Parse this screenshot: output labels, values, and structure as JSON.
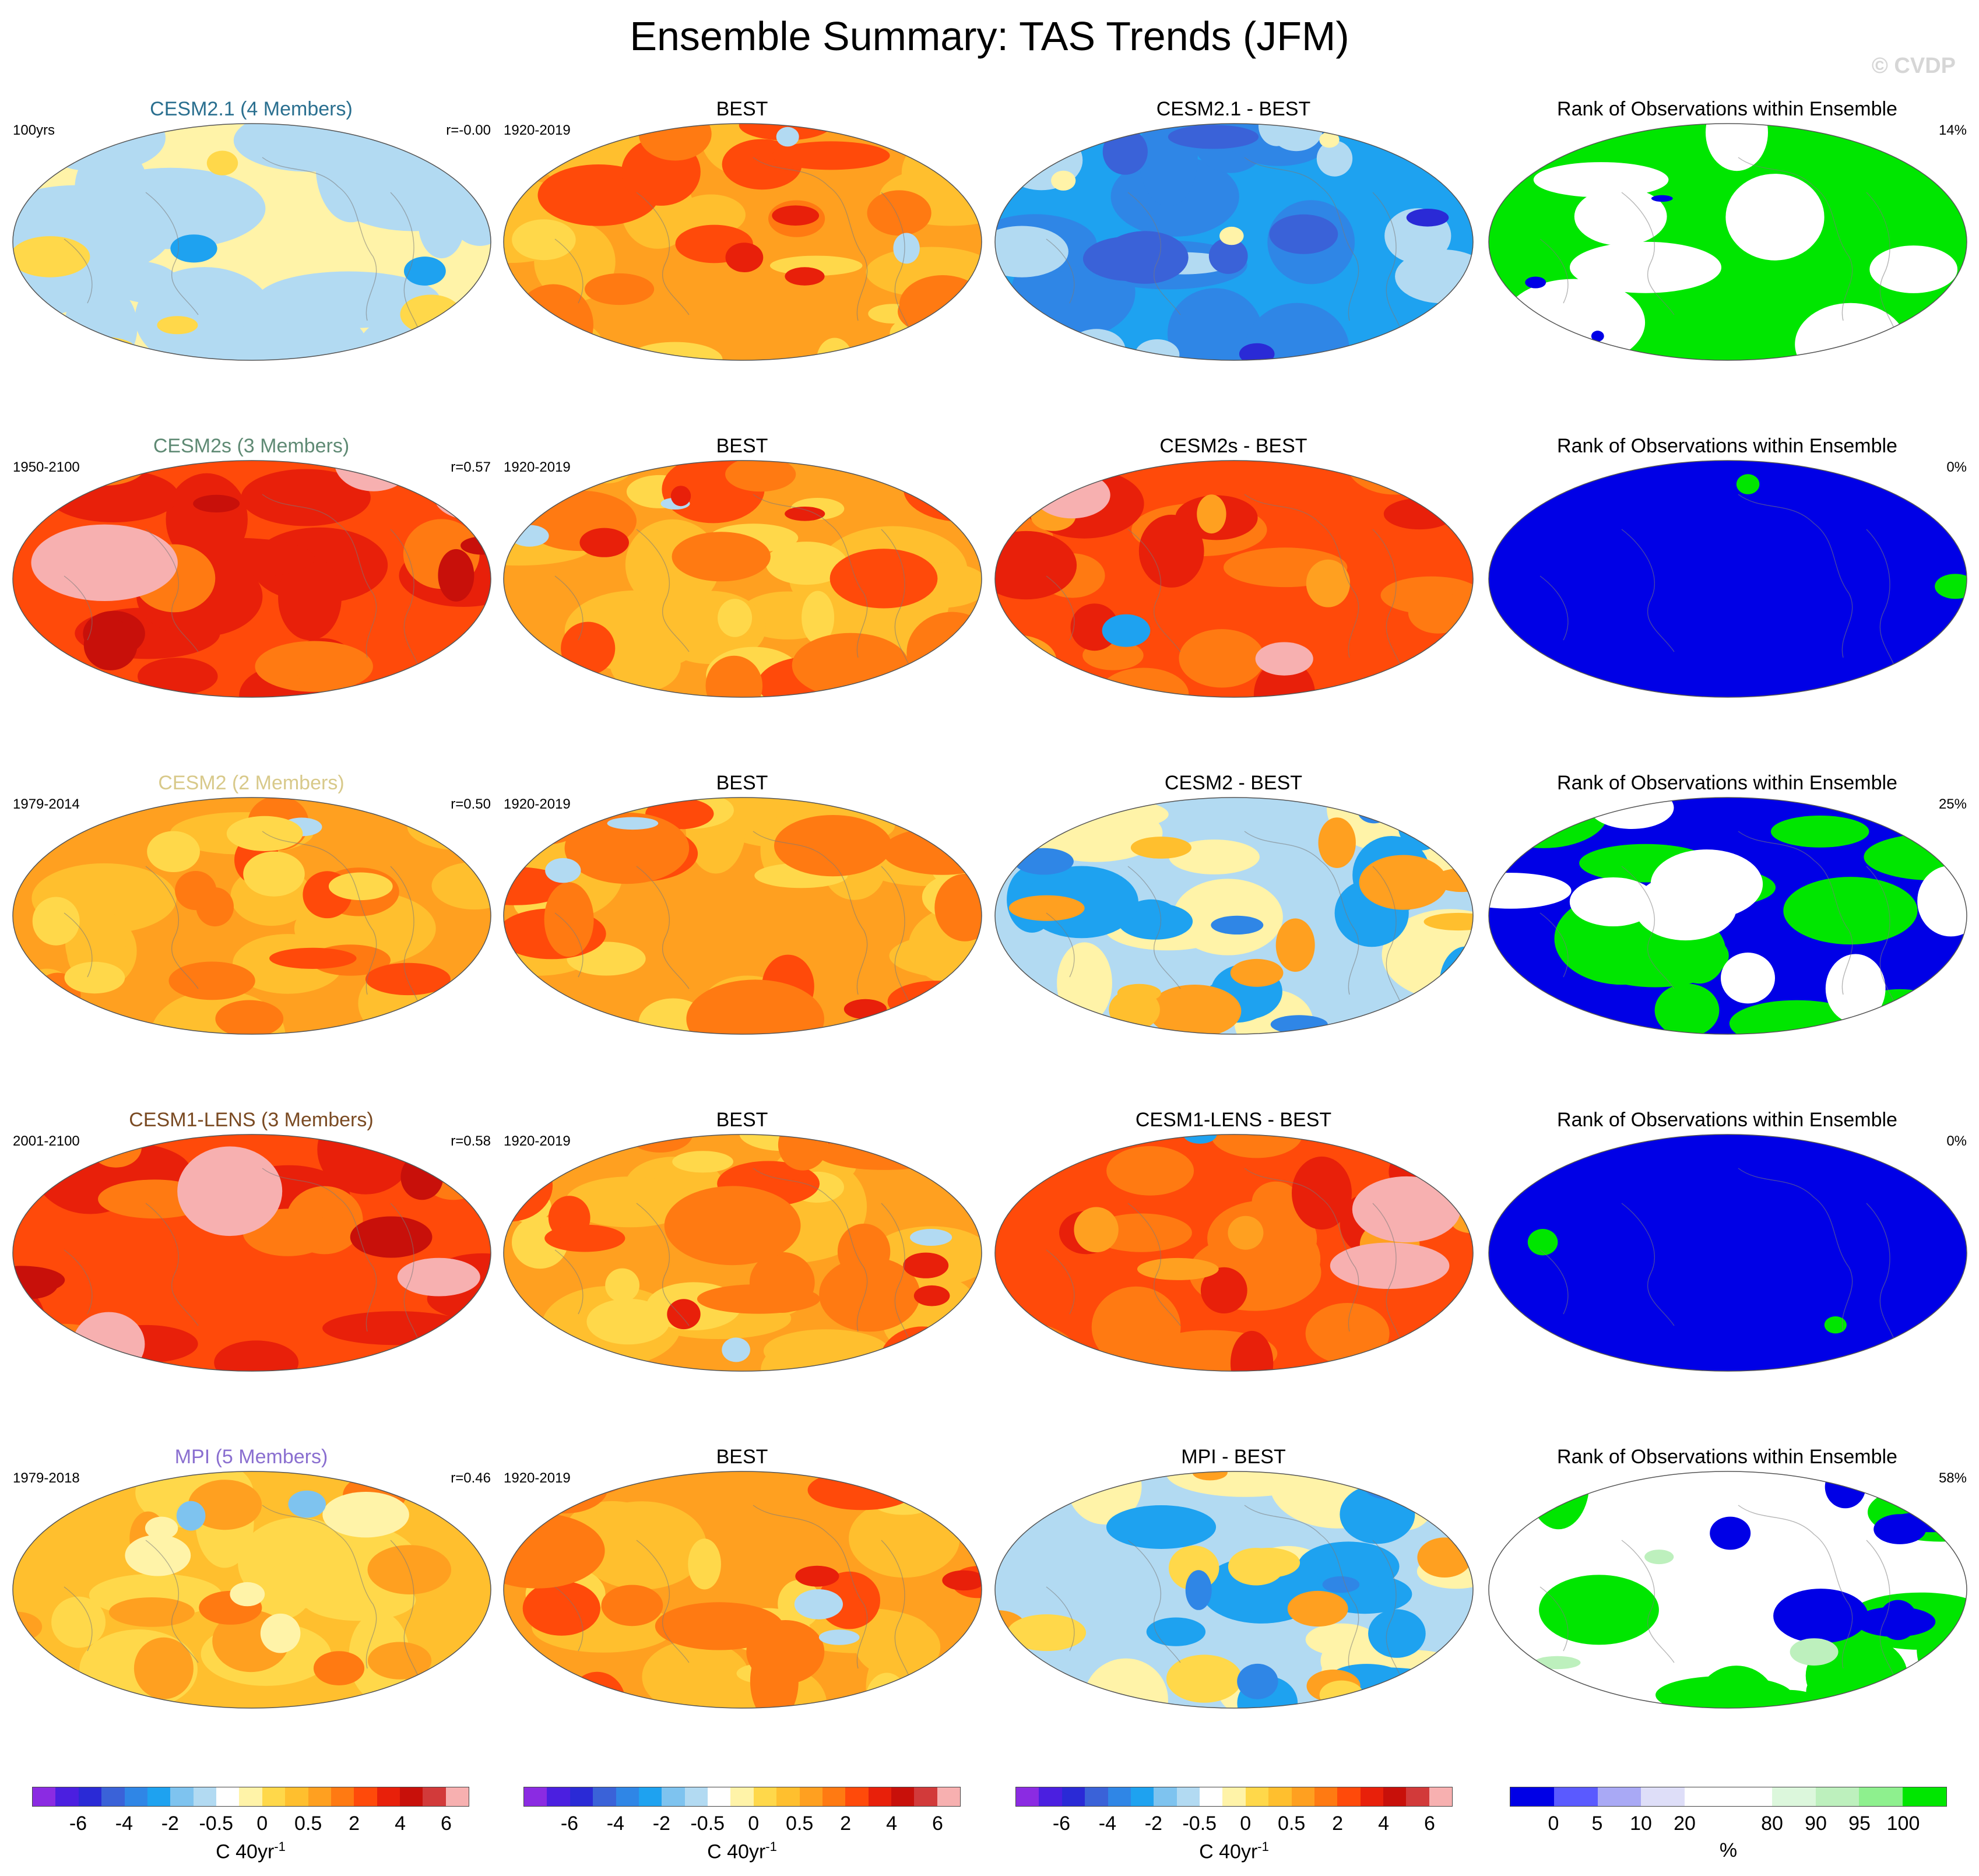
{
  "title": "Ensemble Summary: TAS Trends (JFM)",
  "watermark": "© CVDP",
  "rows": [
    {
      "model": {
        "title": "CESM2.1 (4 Members)",
        "title_color": "#2a6f8f",
        "left_label": "100yrs",
        "right_label": "r=-0.00",
        "pattern": "cool_weak"
      },
      "obs": {
        "title": "BEST",
        "left_label": "1920-2019",
        "pattern": "obs"
      },
      "diff": {
        "title": "CESM2.1 - BEST",
        "pattern": "diff_cold"
      },
      "rank": {
        "title": "Rank of Observations within Ensemble",
        "right_label": "14%",
        "pattern": "rank_green"
      }
    },
    {
      "model": {
        "title": "CESM2s (3 Members)",
        "title_color": "#5f8a74",
        "left_label": "1950-2100",
        "right_label": "r=0.57",
        "pattern": "hot"
      },
      "obs": {
        "title": "BEST",
        "left_label": "1920-2019",
        "pattern": "obs"
      },
      "diff": {
        "title": "CESM2s - BEST",
        "pattern": "diff_hot"
      },
      "rank": {
        "title": "Rank of Observations within Ensemble",
        "right_label": "0%",
        "pattern": "rank_blue"
      }
    },
    {
      "model": {
        "title": "CESM2 (2 Members)",
        "title_color": "#d8c98a",
        "left_label": "1979-2014",
        "right_label": "r=0.50",
        "pattern": "warm"
      },
      "obs": {
        "title": "BEST",
        "left_label": "1920-2019",
        "pattern": "obs"
      },
      "diff": {
        "title": "CESM2 - BEST",
        "pattern": "diff_mixed"
      },
      "rank": {
        "title": "Rank of Observations within Ensemble",
        "right_label": "25%",
        "pattern": "rank_mixed"
      }
    },
    {
      "model": {
        "title": "CESM1-LENS (3 Members)",
        "title_color": "#7a4a22",
        "left_label": "2001-2100",
        "right_label": "r=0.58",
        "pattern": "hot"
      },
      "obs": {
        "title": "BEST",
        "left_label": "1920-2019",
        "pattern": "obs"
      },
      "diff": {
        "title": "CESM1-LENS - BEST",
        "pattern": "diff_hot"
      },
      "rank": {
        "title": "Rank of Observations within Ensemble",
        "right_label": "0%",
        "pattern": "rank_blue"
      }
    },
    {
      "model": {
        "title": "MPI (5 Members)",
        "title_color": "#8a6fd0",
        "left_label": "1979-2018",
        "right_label": "r=0.46",
        "pattern": "warm_mild"
      },
      "obs": {
        "title": "BEST",
        "left_label": "1920-2019",
        "pattern": "obs"
      },
      "diff": {
        "title": "MPI - BEST",
        "pattern": "diff_mixed2"
      },
      "rank": {
        "title": "Rank of Observations within Ensemble",
        "right_label": "58%",
        "pattern": "rank_white"
      }
    }
  ],
  "colorbars": {
    "tas": {
      "colors": [
        "#8b2be2",
        "#4b1fe0",
        "#2a2ad6",
        "#3a62d8",
        "#2f86e6",
        "#1ea2f0",
        "#7ec3ef",
        "#b2daf2",
        "#ffffff",
        "#fff3a8",
        "#ffd84a",
        "#ffbf2e",
        "#ffa020",
        "#ff7a12",
        "#ff4a0a",
        "#e8200a",
        "#c8100a",
        "#d23a3a",
        "#f7b0b0"
      ],
      "ticks": [
        "-6",
        "-4",
        "-2",
        "-0.5",
        "0",
        "0.5",
        "2",
        "4",
        "6"
      ],
      "tick_positions": [
        2,
        4,
        6,
        8,
        10,
        12,
        14,
        16,
        18
      ],
      "unit_main": "C 40yr",
      "unit_sup": "-1"
    },
    "rank": {
      "colors": [
        "#0000e6",
        "#5a5aff",
        "#a9a9f5",
        "#dedef8",
        "#ffffff",
        "#ffffff",
        "#dcf7dc",
        "#bdf0bd",
        "#8ef08e",
        "#00e600"
      ],
      "ticks": [
        "0",
        "5",
        "10",
        "20",
        "80",
        "90",
        "95",
        "100"
      ],
      "tick_positions": [
        1,
        2,
        3,
        4,
        6,
        7,
        8,
        9
      ],
      "unit_main": "%"
    }
  }
}
